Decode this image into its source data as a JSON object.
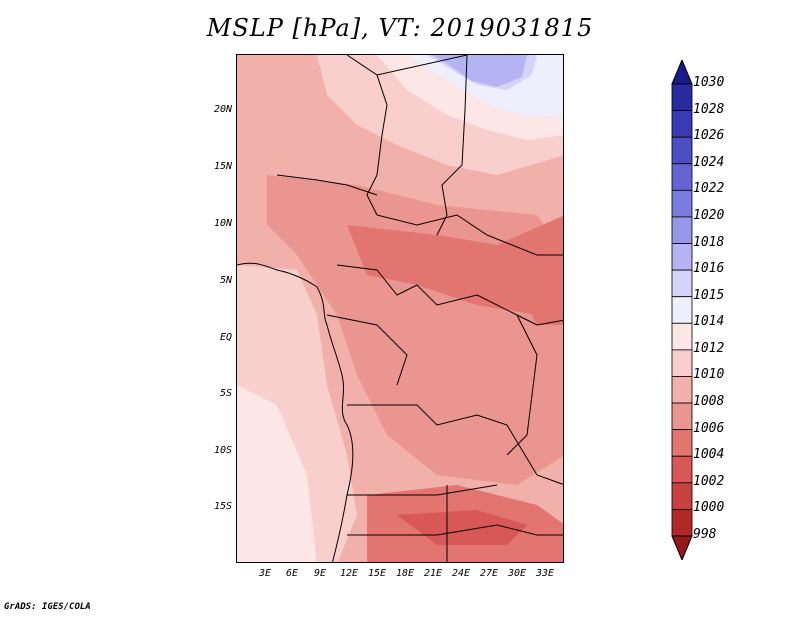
{
  "title": "MSLP [hPa], VT: 2019031815",
  "footer": "GrADS: IGES/COLA",
  "lat_labels": [
    "20N",
    "15N",
    "10N",
    "5N",
    "EQ",
    "5S",
    "10S",
    "15S"
  ],
  "lon_labels": [
    "3E",
    "6E",
    "9E",
    "12E",
    "15E",
    "18E",
    "21E",
    "24E",
    "27E",
    "30E",
    "33E"
  ],
  "colorbar": {
    "labels": [
      "1030",
      "1028",
      "1026",
      "1024",
      "1022",
      "1020",
      "1018",
      "1016",
      "1015",
      "1014",
      "1012",
      "1010",
      "1008",
      "1006",
      "1004",
      "1002",
      "1000",
      "998"
    ],
    "colors": [
      "#1a1a8a",
      "#2a2aa0",
      "#3a3ab4",
      "#4d4dc4",
      "#6464d2",
      "#7c7ce0",
      "#9696ea",
      "#b4b4f2",
      "#d4d4f8",
      "#eeeefc",
      "#fde6e6",
      "#f8cfcc",
      "#f2b0ab",
      "#ea9590",
      "#e27570",
      "#d85858",
      "#c84040",
      "#b02828",
      "#961818"
    ]
  }
}
